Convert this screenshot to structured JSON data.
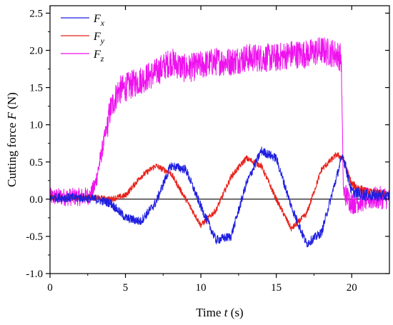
{
  "chart_data": {
    "type": "line",
    "xlabel": "Time t (s)",
    "ylabel": "Cutting force F (N)",
    "xlim": [
      0,
      22.5
    ],
    "ylim": [
      -1.0,
      2.6
    ],
    "x_ticks": [
      0,
      5,
      10,
      15,
      20
    ],
    "y_ticks": [
      -1.0,
      -0.5,
      0.0,
      0.5,
      1.0,
      1.5,
      2.0,
      2.5
    ],
    "zero_reference_line": true,
    "grid": false,
    "legend_position": "top-left",
    "series": [
      {
        "name": "Fx",
        "color": "#1f1fe0",
        "noise": 0.06,
        "x": [
          0,
          2,
          3,
          4,
          5,
          6,
          7,
          8,
          9,
          10,
          11,
          12,
          13,
          14,
          15,
          16,
          17,
          18,
          19,
          19.4,
          20,
          21,
          22,
          22.5
        ],
        "values": [
          0.02,
          0.02,
          0.0,
          -0.05,
          -0.25,
          -0.3,
          -0.05,
          0.45,
          0.4,
          -0.1,
          -0.55,
          -0.5,
          0.2,
          0.65,
          0.55,
          -0.1,
          -0.6,
          -0.45,
          0.3,
          0.6,
          0.1,
          0.05,
          0.05,
          0.05
        ]
      },
      {
        "name": "Fy",
        "color": "#e8201a",
        "noise": 0.04,
        "x": [
          0,
          2,
          3,
          4,
          5,
          6,
          7,
          8,
          9,
          10,
          11,
          12,
          13,
          14,
          15,
          16,
          17,
          18,
          19,
          19.4,
          20,
          21,
          22,
          22.5
        ],
        "values": [
          0.02,
          0.02,
          0.02,
          0.0,
          0.05,
          0.3,
          0.45,
          0.35,
          0.0,
          -0.35,
          -0.15,
          0.3,
          0.55,
          0.45,
          0.0,
          -0.4,
          -0.2,
          0.4,
          0.6,
          0.55,
          0.2,
          0.1,
          0.07,
          0.06
        ]
      },
      {
        "name": "Fz",
        "color": "#ee12ee",
        "noise": 0.12,
        "x": [
          0,
          2,
          2.7,
          3.0,
          3.5,
          4.0,
          4.5,
          5,
          6,
          7,
          8,
          9,
          10,
          11,
          12,
          13,
          14,
          15,
          16,
          17,
          18,
          19,
          19.3,
          19.45,
          20,
          21,
          22,
          22.5
        ],
        "values": [
          0.03,
          0.03,
          0.05,
          0.2,
          0.7,
          1.2,
          1.45,
          1.5,
          1.6,
          1.7,
          1.85,
          1.75,
          1.8,
          1.85,
          1.85,
          1.9,
          1.9,
          1.9,
          1.95,
          1.95,
          2.0,
          1.95,
          1.9,
          0.1,
          -0.05,
          0.0,
          0.02,
          0.02
        ]
      }
    ]
  },
  "legend": {
    "items": [
      {
        "base": "F",
        "sub": "x",
        "color": "#1f1fe0"
      },
      {
        "base": "F",
        "sub": "y",
        "color": "#e8201a"
      },
      {
        "base": "F",
        "sub": "z",
        "color": "#ee12ee"
      }
    ]
  }
}
